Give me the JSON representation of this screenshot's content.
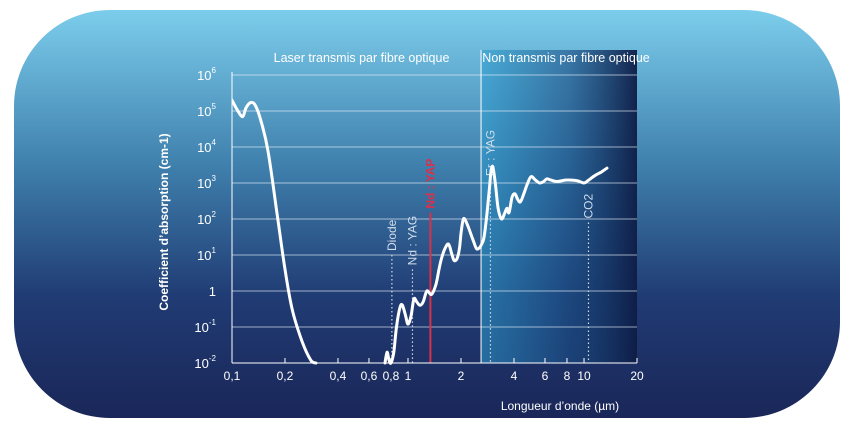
{
  "chart_data": {
    "type": "line",
    "xlabel": "Longueur d’onde (µm)",
    "ylabel": "Coefficient d’absorption (cm-1)",
    "x_scale": "log",
    "y_scale": "log",
    "xlim": [
      0.1,
      20
    ],
    "ylim": [
      0.01,
      1000000
    ],
    "grid": true,
    "x_ticks": [
      {
        "value": 0.1,
        "label": "0,1"
      },
      {
        "value": 0.2,
        "label": "0,2"
      },
      {
        "value": 0.4,
        "label": "0,4"
      },
      {
        "value": 0.6,
        "label": "0,6"
      },
      {
        "value": 0.8,
        "label": "0,8"
      },
      {
        "value": 1,
        "label": "1"
      },
      {
        "value": 2,
        "label": "2"
      },
      {
        "value": 4,
        "label": "4"
      },
      {
        "value": 6,
        "label": "6"
      },
      {
        "value": 8,
        "label": "8"
      },
      {
        "value": 10,
        "label": "10"
      },
      {
        "value": 20,
        "label": "20"
      }
    ],
    "y_ticks": [
      {
        "value": 1000000,
        "base": "10",
        "exp": "6"
      },
      {
        "value": 100000,
        "base": "10",
        "exp": "5"
      },
      {
        "value": 10000,
        "base": "10",
        "exp": "4"
      },
      {
        "value": 1000,
        "base": "10",
        "exp": "3"
      },
      {
        "value": 100,
        "base": "10",
        "exp": "2"
      },
      {
        "value": 10,
        "base": "10",
        "exp": "1"
      },
      {
        "value": 1,
        "base": "1",
        "exp": ""
      },
      {
        "value": 0.1,
        "base": "10",
        "exp": "-1"
      },
      {
        "value": 0.01,
        "base": "10",
        "exp": "-2"
      }
    ],
    "regions": [
      {
        "label": "Laser transmis par fibre optique",
        "from": 0.1,
        "to": 2.6
      },
      {
        "label": "Non transmis par fibre optique",
        "from": 2.6,
        "to": 20
      }
    ],
    "series": [
      {
        "x": [
          0.1,
          0.108,
          0.115,
          0.12,
          0.127,
          0.135,
          0.145,
          0.16,
          0.18,
          0.2,
          0.22,
          0.25,
          0.28,
          0.3
        ],
        "y": [
          200000,
          100000,
          70000,
          120000,
          170000,
          150000,
          60000,
          8000,
          150,
          4,
          0.3,
          0.04,
          0.012,
          0.01
        ]
      },
      {
        "x": [
          0.74,
          0.76,
          0.78,
          0.8,
          0.83,
          0.86,
          0.9,
          0.93,
          0.97,
          1.0,
          1.04,
          1.08,
          1.12,
          1.17,
          1.22,
          1.28,
          1.36,
          1.44,
          1.5,
          1.55,
          1.62,
          1.7,
          1.78,
          1.83,
          1.9,
          1.96,
          2.0,
          2.05,
          2.1,
          2.2,
          2.35,
          2.45,
          2.55,
          2.62,
          2.7,
          2.8,
          2.9,
          2.95,
          3.0,
          3.05,
          3.15,
          3.25,
          3.4,
          3.55,
          3.65,
          3.75,
          3.9,
          4.05,
          4.2,
          4.35,
          4.55,
          4.75,
          5.0,
          5.3,
          5.6,
          5.9,
          6.15,
          6.5,
          7.0,
          7.8,
          8.5,
          9.2,
          10.0,
          10.5,
          11.5,
          12.5,
          13.5
        ],
        "y": [
          0.01,
          0.02,
          0.012,
          0.01,
          0.02,
          0.1,
          0.35,
          0.4,
          0.2,
          0.12,
          0.2,
          0.6,
          0.5,
          0.4,
          0.5,
          1.0,
          0.8,
          1.5,
          4,
          8,
          15,
          20,
          10,
          7,
          8,
          15,
          40,
          90,
          100,
          60,
          25,
          15,
          16,
          20,
          30,
          120,
          700,
          1800,
          2800,
          2500,
          800,
          200,
          100,
          150,
          200,
          150,
          400,
          500,
          350,
          300,
          500,
          900,
          1500,
          1200,
          1000,
          1100,
          1300,
          1200,
          1100,
          1200,
          1200,
          1150,
          1000,
          1150,
          1600,
          2000,
          2600
        ]
      }
    ],
    "lasers": [
      {
        "label": "Diode",
        "x": 0.81,
        "y_top": 10,
        "color": "#d0dcea",
        "style": "dotted"
      },
      {
        "label": "Nd : YAG",
        "x": 1.06,
        "y_top": 4,
        "color": "#d0dcea",
        "style": "dotted"
      },
      {
        "label": "Nd : YAP",
        "x": 1.34,
        "y_top": 150,
        "color": "#d8314a",
        "style": "solid"
      },
      {
        "label": "Er : YAG",
        "x": 2.94,
        "y_top": 1200,
        "color": "#d0dcea",
        "style": "dotted"
      },
      {
        "label": "CO2",
        "x": 10.6,
        "y_top": 80,
        "color": "#d0dcea",
        "style": "dotted"
      }
    ]
  }
}
